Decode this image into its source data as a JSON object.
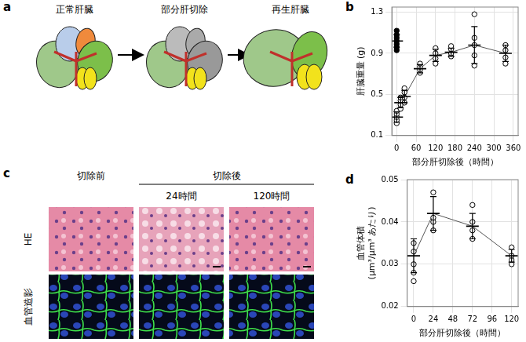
{
  "panel_a": {
    "label": "a",
    "stages": [
      "正常肝臓",
      "部分肝切除",
      "再生肝臓"
    ]
  },
  "panel_c": {
    "label": "c",
    "group_header": "切除後",
    "columns": [
      "切除前",
      "24時間",
      "120時間"
    ],
    "rows": [
      "HE",
      "血管造影"
    ]
  },
  "chart_data": [
    {
      "panel": "b",
      "type": "scatter",
      "x_label": "部分肝切除後（時間）",
      "y_label": "肝臓重量 (g)",
      "series": [
        {
          "marker": "filled",
          "color": "#000000",
          "x": [
            0,
            0,
            0,
            0,
            0,
            0,
            0
          ],
          "values": [
            0.93,
            0.96,
            0.99,
            1.02,
            1.05,
            1.08,
            1.12
          ],
          "mean_x": [
            0
          ],
          "mean": [
            1.02
          ],
          "sd": [
            0.06
          ]
        },
        {
          "marker": "open",
          "color": "#000000",
          "x": [
            0,
            0,
            0,
            0,
            0,
            12,
            12,
            12,
            12,
            24,
            24,
            24,
            24,
            72,
            72,
            72,
            72,
            120,
            120,
            120,
            120,
            168,
            168,
            168,
            168,
            240,
            240,
            240,
            240,
            240,
            336,
            336,
            336,
            336
          ],
          "values": [
            0.22,
            0.25,
            0.28,
            0.31,
            0.34,
            0.36,
            0.4,
            0.44,
            0.47,
            0.42,
            0.47,
            0.52,
            0.56,
            0.71,
            0.74,
            0.77,
            0.8,
            0.8,
            0.85,
            0.9,
            0.95,
            0.87,
            0.9,
            0.94,
            0.97,
            0.78,
            0.88,
            0.98,
            1.05,
            1.28,
            0.8,
            0.86,
            0.93,
            0.98
          ],
          "mean_x": [
            0,
            12,
            24,
            72,
            120,
            168,
            240,
            336
          ],
          "mean": [
            0.28,
            0.42,
            0.48,
            0.75,
            0.88,
            0.91,
            0.98,
            0.9
          ],
          "sd": [
            0.05,
            0.05,
            0.06,
            0.04,
            0.06,
            0.04,
            0.18,
            0.08
          ]
        }
      ],
      "xlim": [
        -15,
        375
      ],
      "xticks": [
        0,
        60,
        120,
        180,
        240,
        300,
        360
      ],
      "ylim": [
        0.1,
        1.35
      ],
      "yticks": [
        0.1,
        0.5,
        0.9,
        1.3
      ],
      "grid": true
    },
    {
      "panel": "d",
      "type": "scatter",
      "x_label": "部分肝切除後（時間）",
      "y_label": [
        "血管体積",
        "(µm³/µm³ あたり)"
      ],
      "series": [
        {
          "marker": "open",
          "color": "#000000",
          "x": [
            0,
            0,
            0,
            0,
            0,
            24,
            24,
            24,
            24,
            72,
            72,
            72,
            72,
            120,
            120,
            120,
            120
          ],
          "values": [
            0.026,
            0.028,
            0.03,
            0.033,
            0.035,
            0.038,
            0.04,
            0.041,
            0.047,
            0.036,
            0.038,
            0.04,
            0.044,
            0.03,
            0.031,
            0.032,
            0.034
          ],
          "mean_x": [
            0,
            24,
            72,
            120
          ],
          "mean": [
            0.032,
            0.042,
            0.039,
            0.032
          ],
          "sd": [
            0.004,
            0.004,
            0.003,
            0.0015
          ]
        }
      ],
      "xlim": [
        -8,
        128
      ],
      "xticks": [
        0,
        24,
        48,
        72,
        96,
        120
      ],
      "ylim": [
        0.02,
        0.05
      ],
      "yticks": [
        0.02,
        0.03,
        0.04,
        0.05
      ],
      "grid": true
    }
  ]
}
